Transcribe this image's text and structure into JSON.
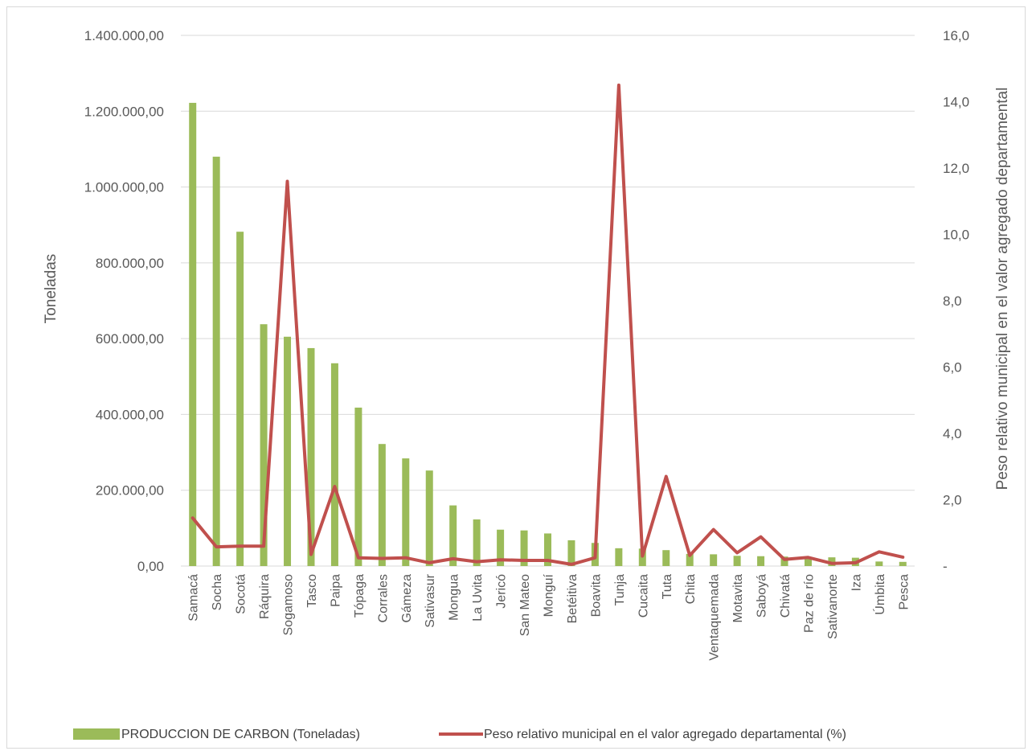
{
  "chart_data": {
    "type": "bar",
    "categories": [
      "Samacá",
      "Socha",
      "Socotá",
      "Ráquira",
      "Sogamoso",
      "Tasco",
      "Paipa",
      "Tópaga",
      "Corrales",
      "Gámeza",
      "Sativasur",
      "Mongua",
      "La Uvita",
      "Jericó",
      "San Mateo",
      "Monguí",
      "Betéitiva",
      "Boavita",
      "Tunja",
      "Cucaita",
      "Tuta",
      "Chita",
      "Ventaquemada",
      "Motavita",
      "Saboyá",
      "Chivatá",
      "Paz de río",
      "Sativanorte",
      "Iza",
      "Úmbita",
      "Pesca"
    ],
    "series": [
      {
        "name": "PRODUCCION DE CARBON  (Toneladas)",
        "type": "bar",
        "axis": "left",
        "color": "#9bbb59",
        "values": [
          1222000,
          1080000,
          882000,
          638000,
          605000,
          575000,
          535000,
          418000,
          322000,
          284000,
          252000,
          160000,
          123000,
          96000,
          94000,
          86000,
          68000,
          61000,
          47000,
          46000,
          42000,
          32000,
          31000,
          27000,
          26000,
          25000,
          24000,
          23000,
          22000,
          12000,
          11000
        ]
      },
      {
        "name": "Peso relativo municipal en el valor agregado departamental (%)",
        "type": "line",
        "axis": "right",
        "color": "#c0504d",
        "values": [
          1.45,
          0.58,
          0.6,
          0.6,
          11.6,
          0.35,
          2.4,
          0.25,
          0.23,
          0.25,
          0.1,
          0.22,
          0.13,
          0.19,
          0.17,
          0.17,
          0.05,
          0.25,
          14.5,
          0.3,
          2.7,
          0.32,
          1.1,
          0.4,
          0.88,
          0.2,
          0.26,
          0.08,
          0.1,
          0.43,
          0.27
        ]
      }
    ],
    "y_left": {
      "label": "Toneladas",
      "ylim": [
        0,
        1400000
      ],
      "ticks": [
        "0,00",
        "200.000,00",
        "400.000,00",
        "600.000,00",
        "800.000,00",
        "1.000.000,00",
        "1.200.000,00",
        "1.400.000,00"
      ]
    },
    "y_right": {
      "label": "Peso relativo municipal en el valor agregado departamental",
      "ylim": [
        0,
        16
      ],
      "ticks": [
        "-",
        "2,0",
        "4,0",
        "6,0",
        "8,0",
        "10,0",
        "12,0",
        "14,0",
        "16,0"
      ]
    },
    "grid": true,
    "legend_position": "bottom"
  }
}
